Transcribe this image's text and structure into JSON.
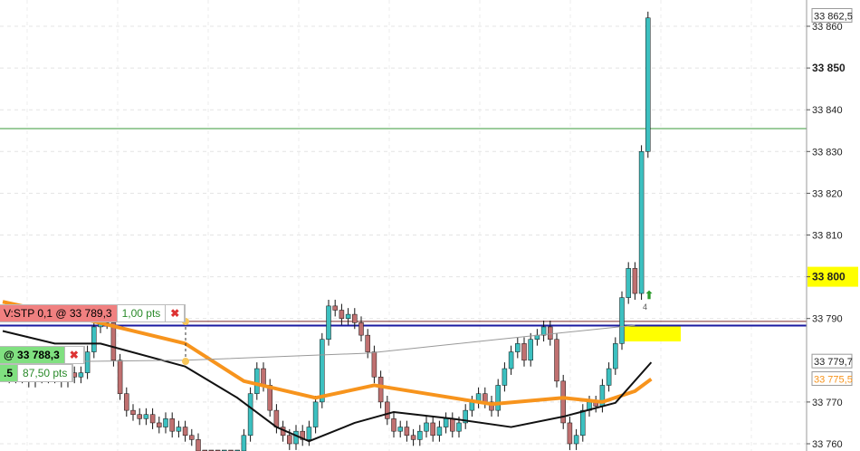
{
  "chart_data": {
    "type": "candlestick",
    "ylim": [
      33758,
      33866
    ],
    "y_ticks": [
      33760,
      33770,
      33790,
      33800,
      33810,
      33820,
      33830,
      33840,
      33850,
      33860
    ],
    "y_tick_labels": [
      "33 760",
      "33 770",
      "33 790",
      "33 800",
      "33 810",
      "33 820",
      "33 830",
      "33 840",
      "33 850",
      "33 860"
    ],
    "highlighted_tick": "33 800",
    "bold_tick": "33 850",
    "grid": true,
    "closes": [
      33777,
      33776,
      33777,
      33776,
      33775,
      33777,
      33776,
      33778,
      33776,
      33775,
      33777,
      33776,
      33777,
      33782,
      33788,
      33790,
      33789,
      33780,
      33772,
      33768,
      33767,
      33766,
      33767,
      33765,
      33764,
      33766,
      33763,
      33764,
      33762,
      33761,
      33755,
      33752,
      33750,
      33748,
      33751,
      33749,
      33753,
      33762,
      33772,
      33778,
      33774,
      33768,
      33764,
      33762,
      33760,
      33763,
      33761,
      33764,
      33770,
      33785,
      33793,
      33792,
      33790,
      33791,
      33789,
      33786,
      33782,
      33776,
      33770,
      33766,
      33763,
      33764,
      33762,
      33761,
      33763,
      33765,
      33762,
      33764,
      33766,
      33763,
      33765,
      33768,
      33770,
      33772,
      33770,
      33768,
      33774,
      33778,
      33782,
      33784,
      33780,
      33785,
      33786,
      33788,
      33785,
      33775,
      33765,
      33760,
      33762,
      33768,
      33770,
      33769,
      33774,
      33778,
      33784,
      33795,
      33802,
      33796,
      33830,
      33862
    ],
    "moving_averages": [
      {
        "color": "#f7941d",
        "points": [
          [
            0,
            33794
          ],
          [
            14,
            33789.3
          ],
          [
            28,
            33784
          ],
          [
            37,
            33775
          ],
          [
            48,
            33771
          ],
          [
            57,
            33774
          ],
          [
            65,
            33772
          ],
          [
            75,
            33769.5
          ],
          [
            86,
            33771
          ],
          [
            92,
            33770
          ],
          [
            97,
            33772.6
          ],
          [
            99.5,
            33775.5
          ]
        ]
      },
      {
        "color": "#111111",
        "points": [
          [
            0,
            33787
          ],
          [
            8,
            33784
          ],
          [
            15,
            33784
          ],
          [
            28,
            33778.5
          ],
          [
            36,
            33771
          ],
          [
            42,
            33764
          ],
          [
            47,
            33760.6
          ],
          [
            54,
            33765
          ],
          [
            60,
            33767.6
          ],
          [
            69,
            33766
          ],
          [
            78,
            33764
          ],
          [
            86,
            33766.5
          ],
          [
            94,
            33769.8
          ],
          [
            99.5,
            33779.5
          ]
        ]
      },
      {
        "color": "#999999",
        "points": [
          [
            0,
            33779.5
          ],
          [
            28,
            33780
          ],
          [
            56,
            33781.7
          ],
          [
            76,
            33785
          ],
          [
            97,
            33788.4
          ]
        ]
      }
    ],
    "horizontal_lines": [
      {
        "price": 33835.5,
        "color": "#3a9a3a"
      },
      {
        "price": 33789.3,
        "color": "#7a2a2a"
      },
      {
        "price": 33788.3,
        "color": "#1a1aa0"
      }
    ],
    "price_labels": [
      {
        "text": "33 862,5",
        "color": "#222222"
      },
      {
        "text": "33 779,7",
        "color": "#222222"
      },
      {
        "text": "33 775,5",
        "color": "#f7941d"
      }
    ],
    "colors": {
      "up": "#3cc0c0",
      "down": "#c07070",
      "highlight": "#ffff00"
    },
    "marker_label": "4"
  },
  "orders": {
    "stop": {
      "label": "V:STP  0,1 @ 33 789,3",
      "pts": "1,00 pts",
      "close": "✖"
    },
    "entry": {
      "label": "@ 33 788,3",
      "close": "✖",
      "qty": ".5",
      "pts": "87,50 pts"
    }
  }
}
